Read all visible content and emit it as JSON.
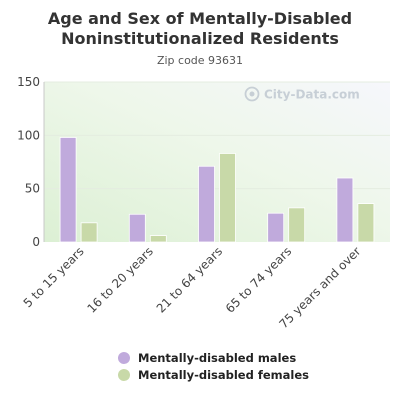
{
  "chart_data": {
    "type": "bar",
    "title_line1": "Age and Sex of Mentally-Disabled",
    "title_line2": "Noninstitutionalized Residents",
    "subtitle": "Zip code 93631",
    "watermark": "City-Data.com",
    "categories": [
      "5 to 15 years",
      "16 to 20 years",
      "21 to 64 years",
      "65 to 74 years",
      "75 years and over"
    ],
    "series": [
      {
        "name": "Mentally-disabled males",
        "color": "#c0aadc",
        "values": [
          98,
          26,
          71,
          27,
          60
        ]
      },
      {
        "name": "Mentally-disabled females",
        "color": "#c8d9a8",
        "values": [
          18,
          6,
          83,
          32,
          36
        ]
      }
    ],
    "ylim": [
      0,
      150
    ],
    "yticks": [
      0,
      50,
      100,
      150
    ],
    "grid": true,
    "legend_position": "bottom"
  }
}
